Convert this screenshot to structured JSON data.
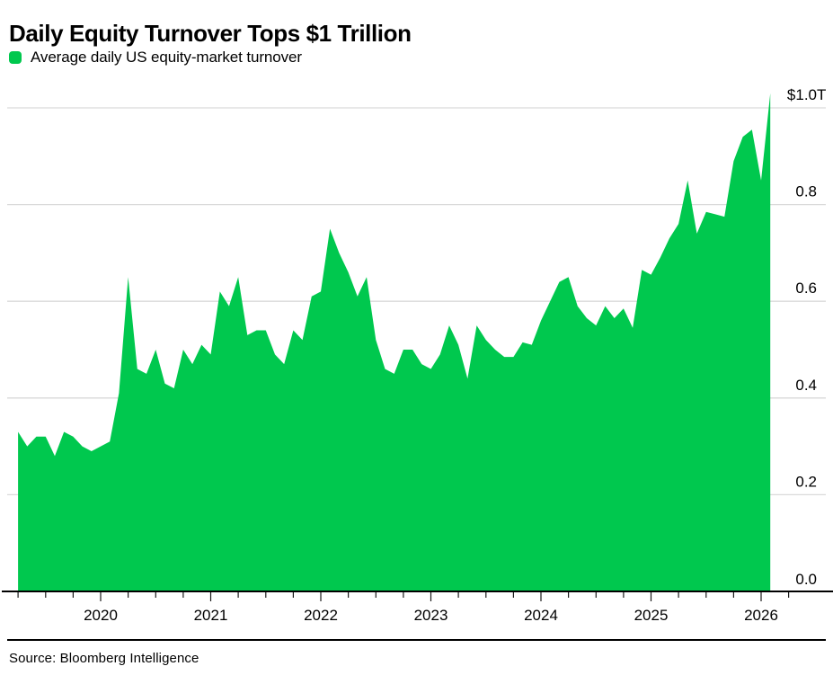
{
  "page": {
    "title": "Daily Equity Turnover Tops $1 Trillion",
    "source": "Source: Bloomberg Intelligence"
  },
  "legend": {
    "label": "Average daily US equity-market turnover",
    "swatch_color": "#00c84e"
  },
  "chart_data": {
    "type": "area",
    "title": "Daily Equity Turnover Tops $1 Trillion",
    "series_name": "Average daily US equity-market turnover",
    "unit": "USD trillions per day",
    "fill_color": "#00c84e",
    "grid": "horizontal",
    "legend_position": "top-left",
    "xlabel": "",
    "ylabel": "",
    "ylim": [
      0,
      1.05
    ],
    "y_ticks": [
      {
        "value": 0.0,
        "label": "0.0"
      },
      {
        "value": 0.2,
        "label": "0.2"
      },
      {
        "value": 0.4,
        "label": "0.4"
      },
      {
        "value": 0.6,
        "label": "0.6"
      },
      {
        "value": 0.8,
        "label": "0.8"
      },
      {
        "value": 1.0,
        "label": "$1.0T"
      }
    ],
    "x_year_ticks": [
      "2020",
      "2021",
      "2022",
      "2023",
      "2024",
      "2025",
      "2026"
    ],
    "x": [
      "2019-03",
      "2019-04",
      "2019-05",
      "2019-06",
      "2019-07",
      "2019-08",
      "2019-09",
      "2019-10",
      "2019-11",
      "2019-12",
      "2020-01",
      "2020-02",
      "2020-03",
      "2020-04",
      "2020-05",
      "2020-06",
      "2020-07",
      "2020-08",
      "2020-09",
      "2020-10",
      "2020-11",
      "2020-12",
      "2021-01",
      "2021-02",
      "2021-03",
      "2021-04",
      "2021-05",
      "2021-06",
      "2021-07",
      "2021-08",
      "2021-09",
      "2021-10",
      "2021-11",
      "2021-12",
      "2022-01",
      "2022-02",
      "2022-03",
      "2022-04",
      "2022-05",
      "2022-06",
      "2022-07",
      "2022-08",
      "2022-09",
      "2022-10",
      "2022-11",
      "2022-12",
      "2023-01",
      "2023-02",
      "2023-03",
      "2023-04",
      "2023-05",
      "2023-06",
      "2023-07",
      "2023-08",
      "2023-09",
      "2023-10",
      "2023-11",
      "2023-12",
      "2024-01",
      "2024-02",
      "2024-03",
      "2024-04",
      "2024-05",
      "2024-06",
      "2024-07",
      "2024-08",
      "2024-09",
      "2024-10",
      "2024-11",
      "2024-12",
      "2025-01",
      "2025-02",
      "2025-03",
      "2025-04",
      "2025-05",
      "2025-06",
      "2025-07",
      "2025-08",
      "2025-09",
      "2025-10",
      "2025-11",
      "2025-12",
      "2026-01"
    ],
    "values": [
      0.33,
      0.3,
      0.32,
      0.32,
      0.28,
      0.33,
      0.32,
      0.3,
      0.29,
      0.3,
      0.31,
      0.41,
      0.65,
      0.46,
      0.45,
      0.5,
      0.43,
      0.42,
      0.5,
      0.47,
      0.51,
      0.49,
      0.62,
      0.59,
      0.65,
      0.53,
      0.54,
      0.54,
      0.49,
      0.47,
      0.54,
      0.52,
      0.61,
      0.62,
      0.75,
      0.7,
      0.66,
      0.61,
      0.65,
      0.52,
      0.46,
      0.45,
      0.5,
      0.5,
      0.47,
      0.46,
      0.49,
      0.55,
      0.51,
      0.44,
      0.55,
      0.52,
      0.5,
      0.485,
      0.485,
      0.515,
      0.51,
      0.56,
      0.6,
      0.64,
      0.65,
      0.59,
      0.565,
      0.55,
      0.59,
      0.565,
      0.585,
      0.545,
      0.665,
      0.655,
      0.69,
      0.73,
      0.76,
      0.85,
      0.74,
      0.785,
      0.78,
      0.775,
      0.89,
      0.94,
      0.955,
      0.85,
      1.03
    ]
  }
}
